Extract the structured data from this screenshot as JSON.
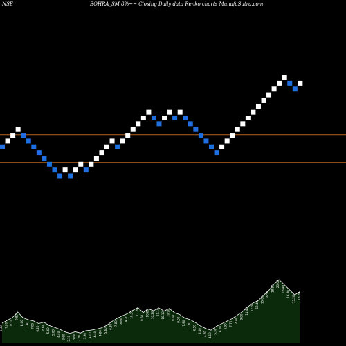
{
  "header": {
    "exchange": "NSE",
    "title": "BOHRA_SM 8%~~ Closing Daily data  Renko  charts MunafaSutra.com"
  },
  "colors": {
    "background": "#000000",
    "up_brick": "#ffffff",
    "down_brick": "#1f6fe0",
    "level_line": "#b8621f",
    "volume_fill": "#0b2a0b",
    "volume_line": "#ffffff"
  },
  "chart_data": [
    {
      "type": "renko",
      "title": "",
      "brick_size": 1,
      "y_scale": "relative",
      "levels": [
        17.1,
        12.3
      ],
      "bricks": [
        {
          "dir": "down",
          "level": 15
        },
        {
          "dir": "up",
          "level": 16
        },
        {
          "dir": "up",
          "level": 17
        },
        {
          "dir": "up",
          "level": 18
        },
        {
          "dir": "down",
          "level": 17
        },
        {
          "dir": "down",
          "level": 16
        },
        {
          "dir": "down",
          "level": 15
        },
        {
          "dir": "down",
          "level": 14
        },
        {
          "dir": "down",
          "level": 13
        },
        {
          "dir": "down",
          "level": 12
        },
        {
          "dir": "down",
          "level": 11
        },
        {
          "dir": "down",
          "level": 10
        },
        {
          "dir": "up",
          "level": 11
        },
        {
          "dir": "down",
          "level": 10
        },
        {
          "dir": "up",
          "level": 11
        },
        {
          "dir": "up",
          "level": 12
        },
        {
          "dir": "down",
          "level": 11
        },
        {
          "dir": "up",
          "level": 12
        },
        {
          "dir": "up",
          "level": 13
        },
        {
          "dir": "up",
          "level": 14
        },
        {
          "dir": "up",
          "level": 15
        },
        {
          "dir": "up",
          "level": 16
        },
        {
          "dir": "down",
          "level": 15
        },
        {
          "dir": "up",
          "level": 16
        },
        {
          "dir": "up",
          "level": 17
        },
        {
          "dir": "up",
          "level": 18
        },
        {
          "dir": "up",
          "level": 19
        },
        {
          "dir": "up",
          "level": 20
        },
        {
          "dir": "up",
          "level": 21
        },
        {
          "dir": "down",
          "level": 20
        },
        {
          "dir": "down",
          "level": 19
        },
        {
          "dir": "up",
          "level": 20
        },
        {
          "dir": "up",
          "level": 21
        },
        {
          "dir": "down",
          "level": 20
        },
        {
          "dir": "up",
          "level": 21
        },
        {
          "dir": "down",
          "level": 20
        },
        {
          "dir": "down",
          "level": 19
        },
        {
          "dir": "down",
          "level": 18
        },
        {
          "dir": "down",
          "level": 17
        },
        {
          "dir": "down",
          "level": 16
        },
        {
          "dir": "down",
          "level": 15
        },
        {
          "dir": "down",
          "level": 14
        },
        {
          "dir": "up",
          "level": 15
        },
        {
          "dir": "up",
          "level": 16
        },
        {
          "dir": "up",
          "level": 17
        },
        {
          "dir": "up",
          "level": 18
        },
        {
          "dir": "up",
          "level": 19
        },
        {
          "dir": "up",
          "level": 20
        },
        {
          "dir": "up",
          "level": 21
        },
        {
          "dir": "up",
          "level": 22
        },
        {
          "dir": "up",
          "level": 23
        },
        {
          "dir": "up",
          "level": 24
        },
        {
          "dir": "up",
          "level": 25
        },
        {
          "dir": "up",
          "level": 26
        },
        {
          "dir": "up",
          "level": 27
        },
        {
          "dir": "down",
          "level": 26
        },
        {
          "dir": "down",
          "level": 25
        },
        {
          "dir": "up",
          "level": 26
        }
      ]
    },
    {
      "type": "area",
      "title": "",
      "series": [
        {
          "values": [
            6.3,
            7.2,
            8.1,
            9.8,
            8.0,
            7.4,
            7.0,
            6.2,
            6.6,
            5.6,
            5.0,
            4.4,
            3.6,
            3.1,
            3.6,
            3.2,
            3.9,
            4.1,
            4.4,
            4.8,
            5.6,
            6.8,
            7.8,
            8.6,
            9.3,
            10.3,
            11.2,
            9.6,
            10.8,
            10.2,
            11.1,
            10.1,
            10.9,
            9.6,
            9.0,
            7.9,
            7.4,
            6.5,
            5.4,
            4.6,
            4.1,
            5.3,
            6.1,
            6.9,
            7.7,
            8.8,
            9.9,
            11.4,
            12.6,
            13.4,
            15.0,
            16.5,
            18.5,
            20.0,
            18.4,
            16.8,
            15.2,
            16.2
          ]
        }
      ],
      "labels": [
        "6.30",
        "7.20",
        "8.10",
        "9.80",
        "8.00",
        "7.40",
        "7.00",
        "6.20",
        "6.60",
        "5.60",
        "5.00",
        "4.40",
        "3.60",
        "3.10",
        "3.60",
        "3.20",
        "3.90",
        "4.10",
        "4.40",
        "4.80",
        "5.60",
        "6.80",
        "7.80",
        "8.60",
        "9.30",
        "10.30",
        "11.20",
        "9.60",
        "10.80",
        "10.20",
        "11.10",
        "10.10",
        "10.90",
        "9.60",
        "9.00",
        "7.90",
        "7.40",
        "6.50",
        "5.40",
        "4.60",
        "4.10",
        "5.30",
        "6.10",
        "6.90",
        "7.70",
        "8.80",
        "9.90",
        "11.40",
        "12.60",
        "13.40",
        "15.00",
        "16.50",
        "18.50",
        "20.00",
        "18.40",
        "16.80",
        "15.20",
        "16.20"
      ]
    }
  ]
}
